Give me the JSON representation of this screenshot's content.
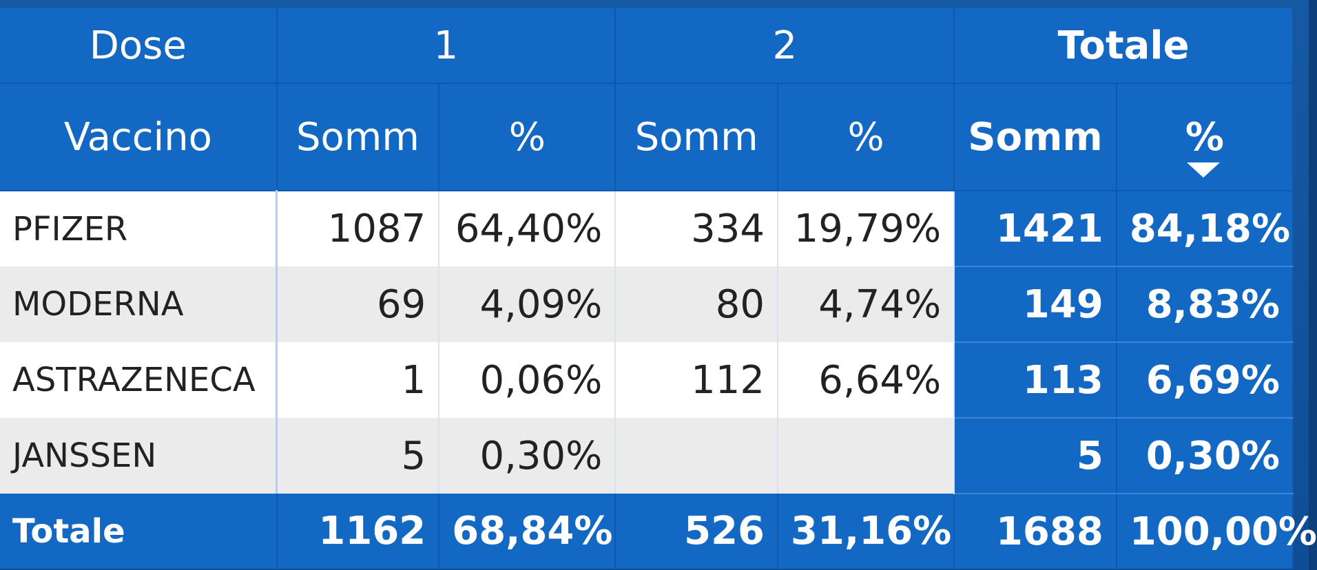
{
  "header": {
    "row_field": "Dose",
    "col_field": "Vaccino",
    "groups": [
      "1",
      "2",
      "Totale"
    ],
    "sub_somm": "Somm",
    "sub_pct": "%"
  },
  "rows": [
    {
      "label": "PFIZER",
      "d1_somm": "1087",
      "d1_pct": "64,40%",
      "d2_somm": "334",
      "d2_pct": "19,79%",
      "tot_somm": "1421",
      "tot_pct": "84,18%"
    },
    {
      "label": "MODERNA",
      "d1_somm": "69",
      "d1_pct": "4,09%",
      "d2_somm": "80",
      "d2_pct": "4,74%",
      "tot_somm": "149",
      "tot_pct": "8,83%"
    },
    {
      "label": "ASTRAZENECA",
      "d1_somm": "1",
      "d1_pct": "0,06%",
      "d2_somm": "112",
      "d2_pct": "6,64%",
      "tot_somm": "113",
      "tot_pct": "6,69%"
    },
    {
      "label": "JANSSEN",
      "d1_somm": "5",
      "d1_pct": "0,30%",
      "d2_somm": "",
      "d2_pct": "",
      "tot_somm": "5",
      "tot_pct": "0,30%"
    }
  ],
  "totals": {
    "label": "Totale",
    "d1_somm": "1162",
    "d1_pct": "68,84%",
    "d2_somm": "526",
    "d2_pct": "31,16%",
    "tot_somm": "1688",
    "tot_pct": "100,00%"
  },
  "sort": {
    "column": "Totale %",
    "direction": "descending"
  },
  "colors": {
    "header_bg": "#1368c4",
    "row_even": "#ebebeb",
    "row_odd": "#ffffff",
    "text_dark": "#222222",
    "text_light": "#ffffff"
  }
}
